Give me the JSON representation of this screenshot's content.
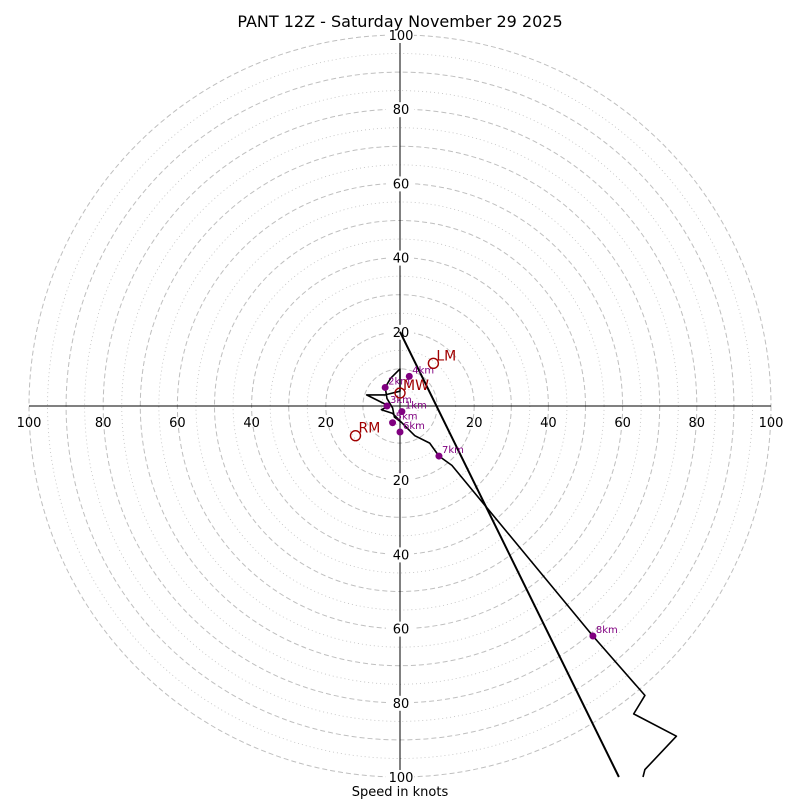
{
  "chart_data": {
    "type": "hodograph",
    "title": "PANT 12Z - Saturday November 29 2025",
    "xlabel": "Speed in knots",
    "units": "knots",
    "max_speed": 100,
    "ring_labels": [
      20,
      40,
      60,
      80,
      100
    ],
    "dashed_rings": [
      10,
      20,
      30,
      40,
      50,
      60,
      70,
      80,
      90,
      100
    ],
    "dotted_rings": [
      5,
      15,
      25,
      35,
      45,
      55,
      65,
      75,
      85,
      95
    ],
    "x_tick_labels": [
      {
        "value": -100,
        "text": "100"
      },
      {
        "value": -80,
        "text": "80"
      },
      {
        "value": -60,
        "text": "60"
      },
      {
        "value": -40,
        "text": "40"
      },
      {
        "value": -20,
        "text": "20"
      },
      {
        "value": 20,
        "text": "20"
      },
      {
        "value": 40,
        "text": "40"
      },
      {
        "value": 60,
        "text": "60"
      },
      {
        "value": 80,
        "text": "80"
      },
      {
        "value": 100,
        "text": "100"
      }
    ],
    "y_tick_labels": [
      {
        "value": 100,
        "text": "100"
      },
      {
        "value": 80,
        "text": "80"
      },
      {
        "value": 60,
        "text": "60"
      },
      {
        "value": 40,
        "text": "40"
      },
      {
        "value": 20,
        "text": "20"
      },
      {
        "value": -20,
        "text": "20"
      },
      {
        "value": -40,
        "text": "40"
      },
      {
        "value": -60,
        "text": "60"
      },
      {
        "value": -80,
        "text": "80"
      },
      {
        "value": -100,
        "text": "100"
      }
    ],
    "hodograph_trace": [
      [
        0.5,
        -4.5
      ],
      [
        -1.5,
        -3
      ],
      [
        -2,
        -0.5
      ],
      [
        -3.5,
        2
      ],
      [
        -4,
        5
      ],
      [
        -2.5,
        7.5
      ],
      [
        0,
        10
      ],
      [
        0,
        4
      ],
      [
        -4,
        3
      ],
      [
        -9,
        3
      ],
      [
        -3,
        0
      ],
      [
        -5,
        -1
      ],
      [
        -2,
        -2
      ],
      [
        2,
        -6
      ],
      [
        4,
        -8
      ],
      [
        8,
        -10
      ],
      [
        10.5,
        -13.5
      ],
      [
        14,
        -16
      ],
      [
        52,
        -62
      ],
      [
        66,
        -78
      ],
      [
        63,
        -83
      ],
      [
        74.5,
        -89
      ],
      [
        66,
        -98
      ],
      [
        65.5,
        -100
      ]
    ],
    "trace_color": "#000000",
    "shear_vector": {
      "from": [
        0,
        20
      ],
      "to": [
        59,
        -100
      ],
      "color": "#000000"
    },
    "height_markers": [
      {
        "label": "1km",
        "u": 0.5,
        "v": -1.5
      },
      {
        "label": "2km",
        "u": -4,
        "v": 5
      },
      {
        "label": "3km",
        "u": -3.5,
        "v": 0
      },
      {
        "label": "4km",
        "u": 2.5,
        "v": 8
      },
      {
        "label": "5km",
        "u": -2,
        "v": -4.5
      },
      {
        "label": "6km",
        "u": 0,
        "v": -7
      },
      {
        "label": "7km",
        "u": 10.5,
        "v": -13.5
      },
      {
        "label": "8km",
        "u": 52,
        "v": -62
      }
    ],
    "marker_color": "#800080",
    "storm_motion": [
      {
        "label": "LM",
        "u": 9,
        "v": 11.5
      },
      {
        "label": "RM",
        "u": -12,
        "v": -8
      },
      {
        "label": "MW",
        "u": 0,
        "v": 3.5
      }
    ],
    "storm_motion_color": "#a00000",
    "grid_color": "#bfbfbf"
  }
}
